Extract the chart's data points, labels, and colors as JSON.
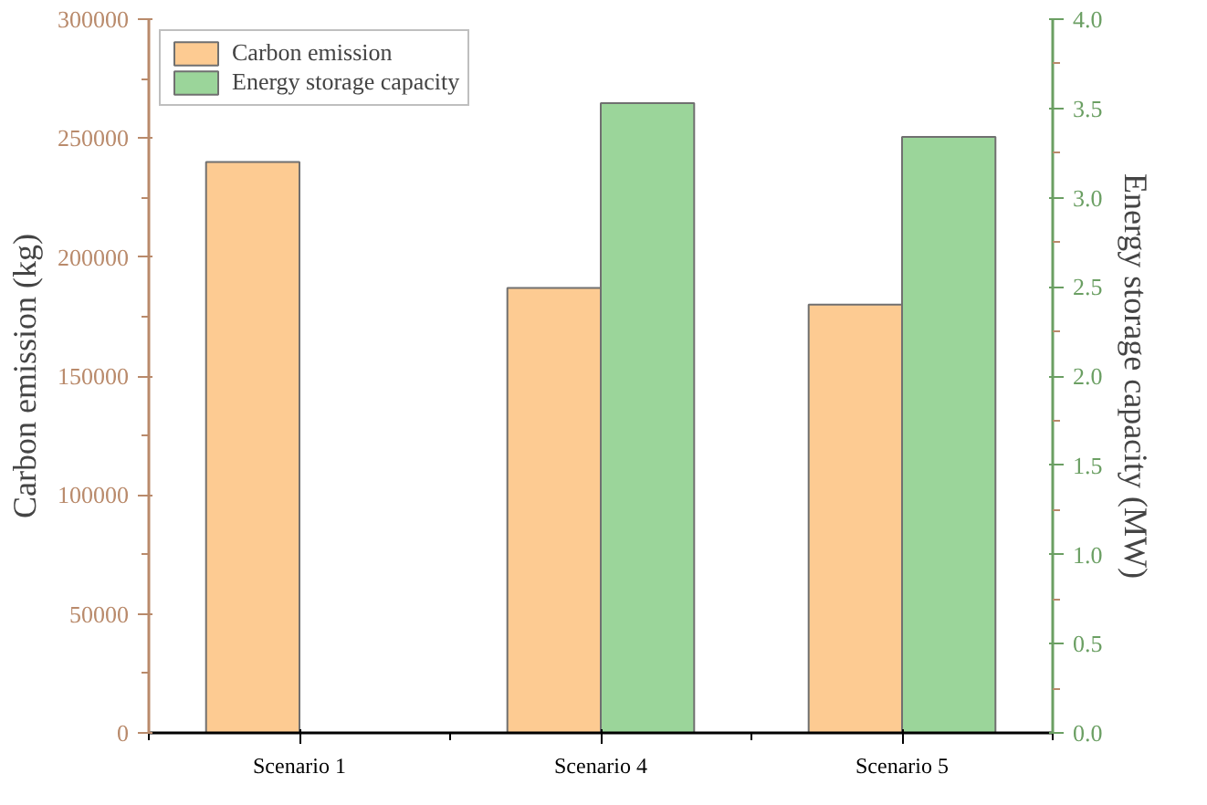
{
  "chart_data": {
    "type": "bar",
    "categories": [
      "Scenario 1",
      "Scenario 4",
      "Scenario 5"
    ],
    "ylabel": "Carbon emission (kg)",
    "y2label": "Energy storage capacity (MW)",
    "ylim": [
      0,
      300000
    ],
    "yticks": [
      0,
      50000,
      100000,
      150000,
      200000,
      250000,
      300000
    ],
    "y2lim": [
      0,
      4.0
    ],
    "y2ticks": [
      {
        "value": 0,
        "label": "0.0"
      },
      0.5,
      {
        "value": 1,
        "label": "1.0"
      },
      1.5,
      {
        "value": 2,
        "label": "2.0"
      },
      2.5,
      {
        "value": 3,
        "label": "3.0"
      },
      3.5,
      {
        "value": 4,
        "label": "4.0"
      }
    ],
    "legend": "top left",
    "series": [
      {
        "name": "Carbon emission",
        "color": "#fdcb92",
        "values": [
          240000,
          187000,
          180000
        ]
      },
      {
        "name": "Energy storage capacity",
        "color": "#9bd59a",
        "values": [
          null,
          3.53,
          3.34
        ],
        "axis": "y2"
      }
    ]
  }
}
